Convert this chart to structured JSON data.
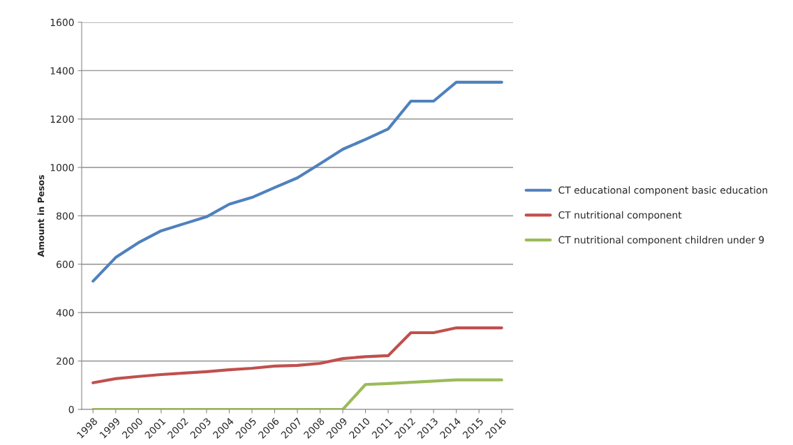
{
  "chart_data": {
    "type": "line",
    "ylabel": "Amount in Pesos",
    "categories": [
      "1998",
      "1999",
      "2000",
      "2001",
      "2002",
      "2003",
      "2004",
      "2005",
      "2006",
      "2007",
      "2008",
      "2009",
      "2010",
      "2011",
      "2012",
      "2013",
      "2014",
      "2015",
      "2016"
    ],
    "series": [
      {
        "name": "CT educational component basic education",
        "color": "#4f81bd",
        "values": [
          530,
          628,
          689,
          738,
          767,
          796,
          848,
          876,
          917,
          957,
          1015,
          1075,
          1116,
          1159,
          1274,
          1274,
          1352,
          1352,
          1352
        ]
      },
      {
        "name": "CT nutritional component",
        "color": "#c0504d",
        "values": [
          110,
          127,
          136,
          144,
          150,
          156,
          164,
          170,
          179,
          182,
          190,
          210,
          218,
          222,
          317,
          317,
          337,
          337,
          337
        ]
      },
      {
        "name": "CT nutritional component children under 9",
        "color": "#9bbb59",
        "values": [
          0,
          0,
          0,
          0,
          0,
          0,
          0,
          0,
          0,
          0,
          0,
          0,
          103,
          107,
          112,
          117,
          122,
          122,
          122
        ]
      }
    ],
    "ylim": [
      0,
      1600
    ],
    "yticks": [
      0,
      200,
      400,
      600,
      800,
      1000,
      1200,
      1400,
      1600
    ],
    "grid": "y",
    "legend": "right",
    "marker": "none",
    "line_style": "solid"
  }
}
